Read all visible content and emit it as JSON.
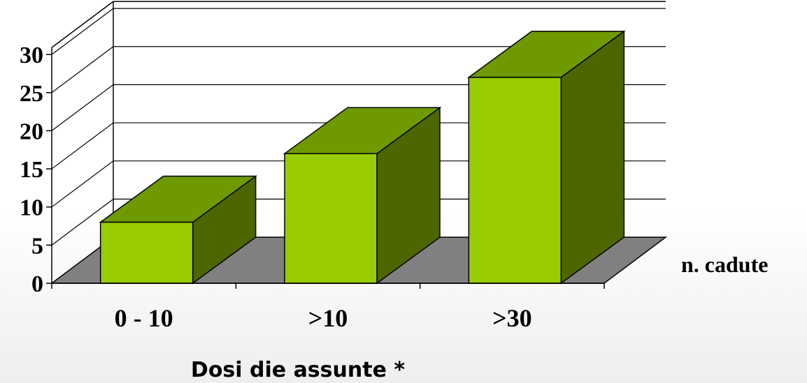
{
  "chart_data": {
    "type": "bar",
    "style": "3d-column",
    "categories": [
      "0 - 10",
      ">10",
      ">30"
    ],
    "series": [
      {
        "name": "n. cadute",
        "values": [
          8,
          17,
          27
        ]
      }
    ],
    "xlabel": "Dosi die assunte *",
    "ylabel": "",
    "ylim": [
      0,
      30
    ],
    "yticks": [
      0,
      5,
      10,
      15,
      20,
      25,
      30
    ],
    "grid": true,
    "legend": "right",
    "colors": {
      "bar_front": "#99cc00",
      "bar_top": "#6e9a00",
      "bar_side": "#4d6600",
      "floor": "#808080",
      "grid": "#000000"
    }
  }
}
